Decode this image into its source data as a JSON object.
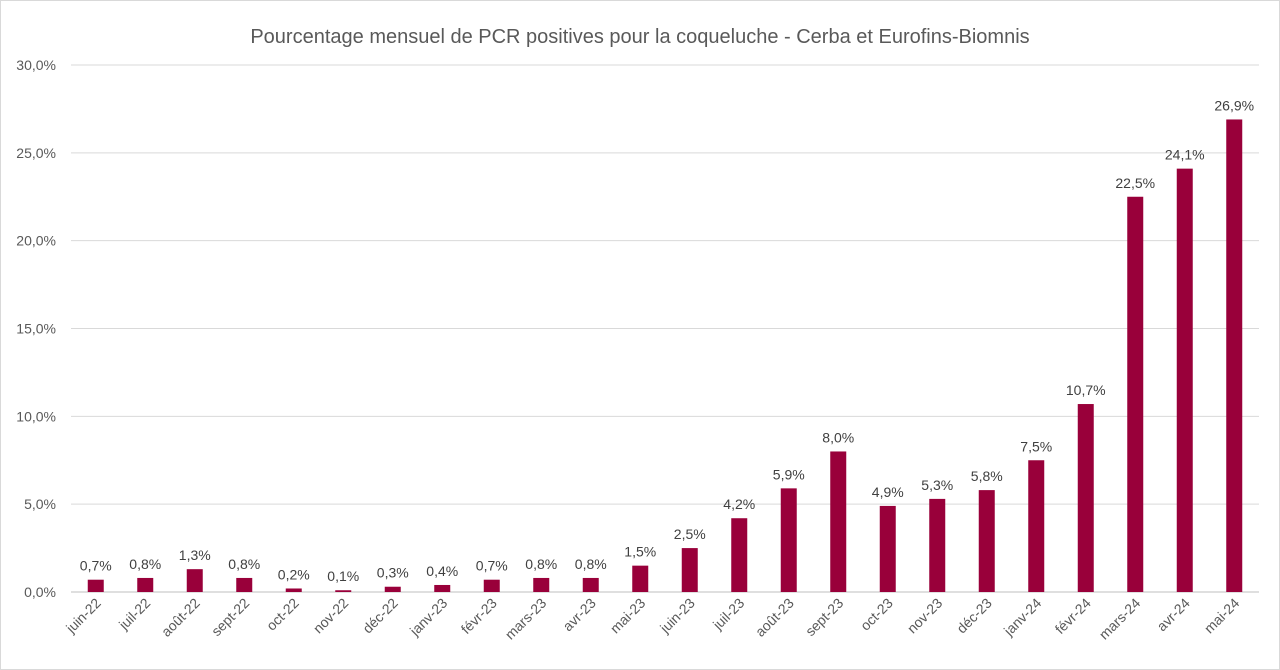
{
  "chart_data": {
    "type": "bar",
    "title": "Pourcentage mensuel de PCR positives pour la coqueluche - Cerba et Eurofins-Biomnis",
    "xlabel": "",
    "ylabel": "",
    "ylim": [
      0,
      30
    ],
    "ytick_labels": [
      "0,0%",
      "5,0%",
      "10,0%",
      "15,0%",
      "20,0%",
      "25,0%",
      "30,0%"
    ],
    "grid": true,
    "legend": "none",
    "bar_color": "#99003A",
    "categories": [
      "juin-22",
      "juil-22",
      "août-22",
      "sept-22",
      "oct-22",
      "nov-22",
      "déc-22",
      "janv-23",
      "févr-23",
      "mars-23",
      "avr-23",
      "mai-23",
      "juin-23",
      "juil-23",
      "août-23",
      "sept-23",
      "oct-23",
      "nov-23",
      "déc-23",
      "janv-24",
      "févr-24",
      "mars-24",
      "avr-24",
      "mai-24"
    ],
    "values": [
      0.7,
      0.8,
      1.3,
      0.8,
      0.2,
      0.1,
      0.3,
      0.4,
      0.7,
      0.8,
      0.8,
      1.5,
      2.5,
      4.2,
      5.9,
      8.0,
      4.9,
      5.3,
      5.8,
      7.5,
      10.7,
      22.5,
      24.1,
      26.9
    ],
    "data_labels": [
      "0,7%",
      "0,8%",
      "1,3%",
      "0,8%",
      "0,2%",
      "0,1%",
      "0,3%",
      "0,4%",
      "0,7%",
      "0,8%",
      "0,8%",
      "1,5%",
      "2,5%",
      "4,2%",
      "5,9%",
      "8,0%",
      "4,9%",
      "5,3%",
      "5,8%",
      "7,5%",
      "10,7%",
      "22,5%",
      "24,1%",
      "26,9%"
    ]
  }
}
